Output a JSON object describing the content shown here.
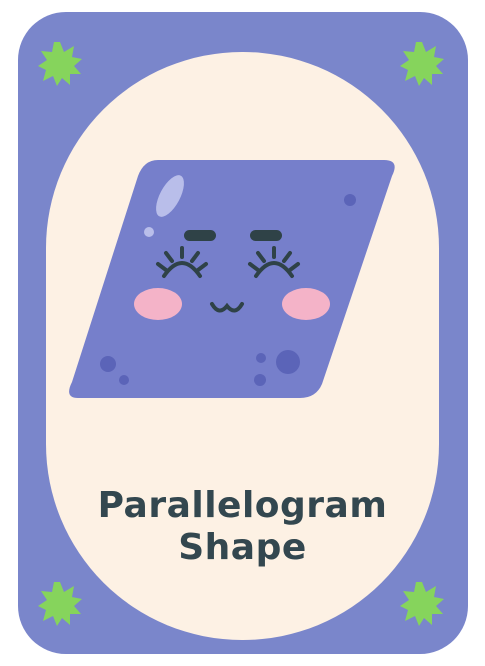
{
  "colors": {
    "card_border": "#7A86CB",
    "panel_fill": "#FDF1E4",
    "shape_fill": "#767FCB",
    "shape_spot": "#5B64B8",
    "face_ink": "#2F4247",
    "blush": "#F4B3C8",
    "burst": "#86D45C",
    "title_text": "#33474F"
  },
  "title": {
    "line1": "Parallelogram",
    "line2": "Shape"
  },
  "decorations": {
    "corner_icon": "starburst-icon",
    "main_figure": "smiling-parallelogram-character"
  }
}
